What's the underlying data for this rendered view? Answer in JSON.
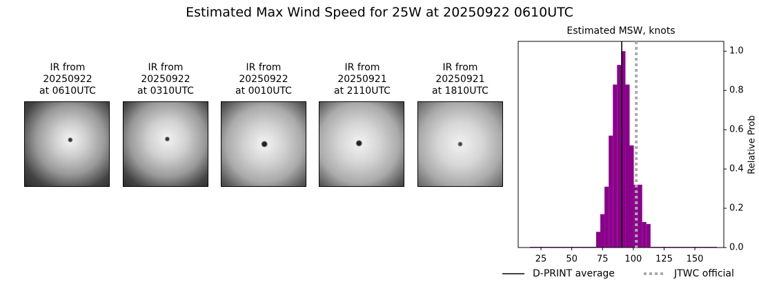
{
  "title": "Estimated Max Wind Speed for 25W at 20250922 0610UTC",
  "images": [
    {
      "label": "IR from\n20250922\nat 0610UTC"
    },
    {
      "label": "IR from\n20250922\nat 0310UTC"
    },
    {
      "label": "IR from\n20250922\nat 0010UTC"
    },
    {
      "label": "IR from\n20250921\nat 2110UTC"
    },
    {
      "label": "IR from\n20250921\nat 1810UTC"
    }
  ],
  "chart_data": {
    "type": "histogram",
    "title": "Estimated MSW, knots",
    "y_label": "Relative Prob",
    "bins": [
      16,
      69.8,
      73.2,
      76.6,
      80.0,
      83.4,
      86.8,
      90.2,
      93.6,
      97.0,
      100.4,
      103.8,
      107.2,
      110.6,
      114.0,
      168
    ],
    "values": [
      0,
      0.08,
      0.17,
      0.31,
      0.57,
      0.83,
      0.93,
      1.0,
      0.83,
      0.52,
      0.32,
      0.32,
      0.13,
      0.12,
      0
    ],
    "color": "#8b008b",
    "xlim": [
      6.5,
      173.5
    ],
    "ylim": [
      0,
      1.05
    ],
    "xticks": [
      25,
      50,
      75,
      100,
      125,
      150
    ],
    "yticks": [
      {
        "value": 0,
        "label": "0.0"
      },
      0.2,
      0.4,
      0.6,
      0.8,
      {
        "value": 1,
        "label": "1.0"
      }
    ],
    "y_axis_side": "right",
    "lines": [
      {
        "name": "D-PRINT average",
        "value": 90.6,
        "color": "#000000",
        "style": "solid"
      },
      {
        "name": "JTWC official",
        "value": 102.4,
        "color": "#aaaaaa",
        "style": "dotted"
      }
    ],
    "legend": "lower center"
  }
}
